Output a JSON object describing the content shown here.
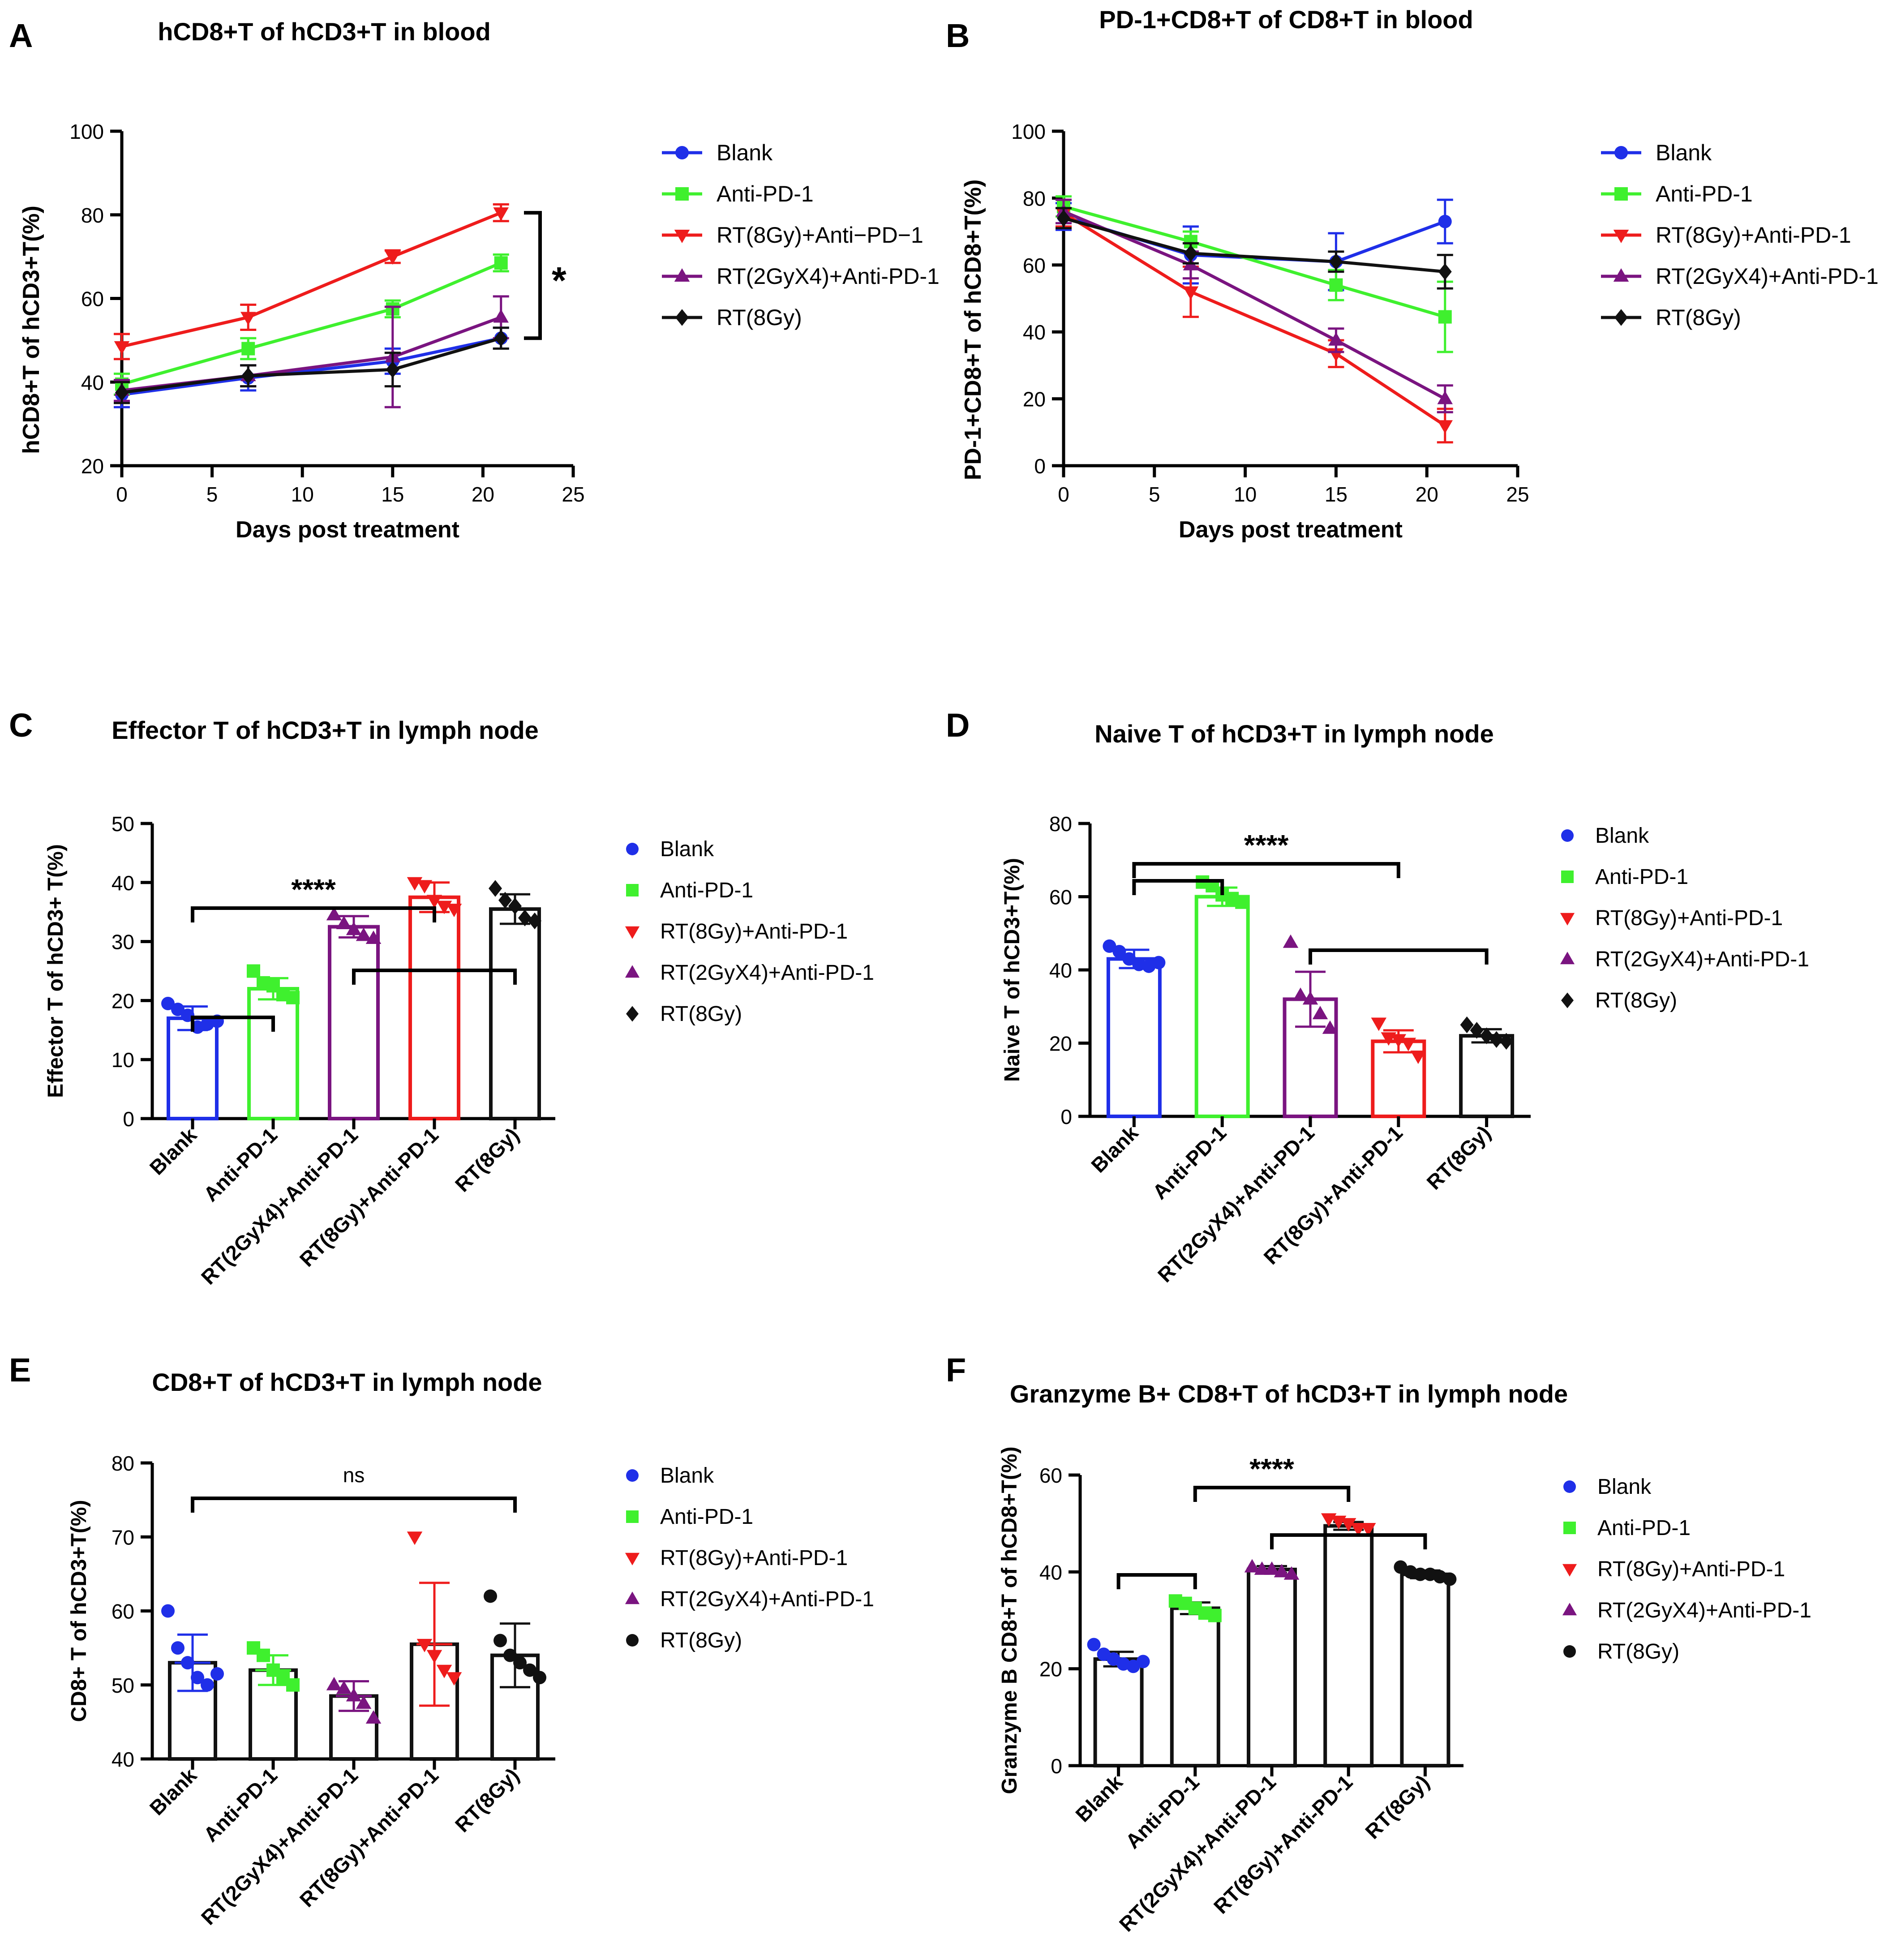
{
  "chart_data": [
    {
      "panel": "A",
      "type": "line",
      "title": "hCD8+T of  hCD3+T in blood",
      "xlabel": "Days post treatment",
      "ylabel": "hCD8+T of hCD3+T(%)",
      "xlim": [
        0,
        25
      ],
      "ylim": [
        20,
        100
      ],
      "xticks": [
        0,
        5,
        10,
        15,
        20,
        25
      ],
      "yticks": [
        20,
        40,
        60,
        80,
        100
      ],
      "x": [
        0,
        7,
        15,
        21
      ],
      "series": [
        {
          "name": "Blank",
          "color": "#1f2fe8",
          "marker": "circle",
          "values": [
            37,
            41,
            45,
            50.5
          ],
          "err": [
            3,
            3,
            3,
            2.5
          ]
        },
        {
          "name": "Anti-PD-1",
          "color": "#3ff02e",
          "marker": "square",
          "values": [
            39.5,
            48,
            57.5,
            68.5
          ],
          "err": [
            2.5,
            2.5,
            2,
            2
          ]
        },
        {
          "name": "RT(8Gy)+Anti−PD−1",
          "color": "#ee1c1c",
          "marker": "triangle-down",
          "values": [
            48.5,
            55.5,
            70,
            80.5
          ],
          "err": [
            3,
            3,
            1.5,
            2
          ]
        },
        {
          "name": "RT(2GyX4)+Anti-PD-1",
          "color": "#7a1480",
          "marker": "triangle-up",
          "values": [
            38,
            41.5,
            46,
            55.5
          ],
          "err": [
            2.5,
            2.5,
            12,
            5
          ]
        },
        {
          "name": "RT(8Gy)",
          "color": "#111111",
          "marker": "diamond",
          "values": [
            37.5,
            41.5,
            43,
            50.5
          ],
          "err": [
            2.5,
            2.5,
            4,
            2.5
          ]
        }
      ],
      "significance": [
        {
          "label": "*"
        }
      ]
    },
    {
      "panel": "B",
      "type": "line",
      "title": "PD-1+CD8+T of CD8+T in blood",
      "xlabel": "Days post treatment",
      "ylabel": "PD-1+CD8+T of hCD8+T(%)",
      "xlim": [
        0,
        25
      ],
      "ylim": [
        0,
        100
      ],
      "xticks": [
        0,
        5,
        10,
        15,
        20,
        25
      ],
      "yticks": [
        0,
        20,
        40,
        60,
        80,
        100
      ],
      "x": [
        0,
        7,
        15,
        21
      ],
      "series": [
        {
          "name": "Blank",
          "color": "#1f2fe8",
          "marker": "circle",
          "values": [
            74.5,
            63,
            61,
            73
          ],
          "err": [
            4,
            8.5,
            8.5,
            6.5
          ]
        },
        {
          "name": "Anti-PD-1",
          "color": "#3ff02e",
          "marker": "square",
          "values": [
            77.5,
            67,
            54,
            44.5
          ],
          "err": [
            3,
            3,
            4.5,
            10.5
          ]
        },
        {
          "name": "RT(8Gy)+Anti-PD-1",
          "color": "#ee1c1c",
          "marker": "triangle-down",
          "values": [
            75.5,
            52,
            33.5,
            12
          ],
          "err": [
            4,
            7.5,
            4,
            5
          ]
        },
        {
          "name": "RT(2GyX4)+Anti-PD-1",
          "color": "#7a1480",
          "marker": "triangle-up",
          "values": [
            76,
            60,
            37.5,
            20
          ],
          "err": [
            3.5,
            4,
            3.5,
            4
          ]
        },
        {
          "name": "RT(8Gy)",
          "color": "#111111",
          "marker": "diamond",
          "values": [
            74,
            63.5,
            61,
            58
          ],
          "err": [
            3,
            3,
            3,
            5
          ]
        }
      ]
    },
    {
      "panel": "C",
      "type": "bar",
      "title": "Effector T of hCD3+T in lymph node",
      "xlabel": "",
      "ylabel": "Effector T of hCD3+ T(%)",
      "ylim": [
        0,
        50
      ],
      "yticks": [
        0,
        10,
        20,
        30,
        40,
        50
      ],
      "categories": [
        "Blank",
        "Anti-PD-1",
        "RT(2GyX4)+Anti-PD-1",
        "RT(8Gy)+Anti-PD-1",
        "RT(8Gy)"
      ],
      "values": [
        17,
        22,
        32.5,
        37.5,
        35.5
      ],
      "err": [
        2,
        1.8,
        1.8,
        2.5,
        2.5
      ],
      "points": [
        [
          19.5,
          18.5,
          17.5,
          15.5,
          16,
          16.5
        ],
        [
          25,
          23,
          22.5,
          21,
          20.5
        ],
        [
          34.5,
          33,
          32,
          31,
          30.5
        ],
        [
          40,
          39.5,
          37,
          36,
          35.5
        ],
        [
          39,
          37,
          36,
          34,
          33.5
        ]
      ],
      "bar_colors": [
        "#1f2fe8",
        "#3ff02e",
        "#7a1480",
        "#ee1c1c",
        "#111111"
      ],
      "markers": [
        "circle",
        "square",
        "triangle-up",
        "triangle-down",
        "diamond"
      ],
      "significance": [
        {
          "label": "****"
        }
      ],
      "legend": [
        {
          "name": "Blank",
          "color": "#1f2fe8",
          "marker": "circle"
        },
        {
          "name": "Anti-PD-1",
          "color": "#3ff02e",
          "marker": "square"
        },
        {
          "name": "RT(8Gy)+Anti-PD-1",
          "color": "#ee1c1c",
          "marker": "triangle-down"
        },
        {
          "name": "RT(2GyX4)+Anti-PD-1",
          "color": "#7a1480",
          "marker": "triangle-up"
        },
        {
          "name": "RT(8Gy)",
          "color": "#111111",
          "marker": "diamond"
        }
      ]
    },
    {
      "panel": "D",
      "type": "bar",
      "title": "Naive T of hCD3+T in lymph node",
      "xlabel": "",
      "ylabel": "Naive T of hCD3+T(%)",
      "ylim": [
        0,
        80
      ],
      "yticks": [
        0,
        20,
        40,
        60,
        80
      ],
      "categories": [
        "Blank",
        "Anti-PD-1",
        "RT(2GyX4)+Anti-PD-1",
        "RT(8Gy)+Anti-PD-1",
        "RT(8Gy)"
      ],
      "values": [
        43,
        60,
        32,
        20.5,
        22
      ],
      "err": [
        2.5,
        2.5,
        7.5,
        3,
        1.8
      ],
      "points": [
        [
          46.5,
          45,
          43,
          41.5,
          41,
          42
        ],
        [
          64,
          63,
          60.5,
          59.5,
          58.5
        ],
        [
          47.5,
          33,
          32,
          28,
          24
        ],
        [
          25.5,
          21.5,
          21,
          20,
          16.5
        ],
        [
          25,
          23.5,
          22,
          21,
          20.5
        ]
      ],
      "bar_colors": [
        "#1f2fe8",
        "#3ff02e",
        "#7a1480",
        "#ee1c1c",
        "#111111"
      ],
      "markers": [
        "circle",
        "square",
        "triangle-up",
        "triangle-down",
        "diamond"
      ],
      "significance": [
        {
          "label": "****"
        }
      ],
      "legend": [
        {
          "name": "Blank",
          "color": "#1f2fe8",
          "marker": "circle"
        },
        {
          "name": "Anti-PD-1",
          "color": "#3ff02e",
          "marker": "square"
        },
        {
          "name": "RT(8Gy)+Anti-PD-1",
          "color": "#ee1c1c",
          "marker": "triangle-down"
        },
        {
          "name": "RT(2GyX4)+Anti-PD-1",
          "color": "#7a1480",
          "marker": "triangle-up"
        },
        {
          "name": "RT(8Gy)",
          "color": "#111111",
          "marker": "diamond"
        }
      ]
    },
    {
      "panel": "E",
      "type": "bar",
      "title": "CD8+T of hCD3+T in lymph node",
      "xlabel": "",
      "ylabel": "CD8+ T of hCD3+T(%)",
      "ylim": [
        40,
        80
      ],
      "yticks": [
        40,
        50,
        60,
        70,
        80
      ],
      "categories": [
        "Blank",
        "Anti-PD-1",
        "RT(2GyX4)+Anti-PD-1",
        "RT(8Gy)+Anti-PD-1",
        "RT(8Gy)"
      ],
      "values": [
        53,
        52,
        48.5,
        55.5,
        54
      ],
      "err": [
        3.8,
        2,
        2,
        8.3,
        4.3
      ],
      "points": [
        [
          60,
          55,
          53,
          51,
          50,
          51.5
        ],
        [
          55,
          54,
          52,
          51,
          50
        ],
        [
          50,
          49.5,
          48.5,
          47.5,
          45.5
        ],
        [
          70,
          55.5,
          54,
          52,
          51
        ],
        [
          62,
          56,
          54,
          53,
          52,
          51
        ]
      ],
      "bar_colors": [
        "#111111",
        "#111111",
        "#111111",
        "#111111",
        "#111111"
      ],
      "point_colors": [
        "#1f2fe8",
        "#3ff02e",
        "#7a1480",
        "#ee1c1c",
        "#111111"
      ],
      "err_colors": [
        "#1f2fe8",
        "#3ff02e",
        "#7a1480",
        "#ee1c1c",
        "#111111"
      ],
      "markers": [
        "circle",
        "square",
        "triangle-up",
        "triangle-down",
        "circle"
      ],
      "significance": [
        {
          "label": "ns"
        }
      ],
      "legend": [
        {
          "name": "Blank",
          "color": "#1f2fe8",
          "marker": "circle"
        },
        {
          "name": "Anti-PD-1",
          "color": "#3ff02e",
          "marker": "square"
        },
        {
          "name": "RT(8Gy)+Anti-PD-1",
          "color": "#ee1c1c",
          "marker": "triangle-down"
        },
        {
          "name": "RT(2GyX4)+Anti-PD-1",
          "color": "#7a1480",
          "marker": "triangle-up"
        },
        {
          "name": "RT(8Gy)",
          "color": "#111111",
          "marker": "circle"
        }
      ]
    },
    {
      "panel": "F",
      "type": "bar",
      "title": "Granzyme B+ CD8+T of hCD3+T in lymph node",
      "xlabel": "",
      "ylabel": "Granzyme B CD8+T of hCD8+T(%)",
      "ylim": [
        0,
        60
      ],
      "yticks": [
        0,
        20,
        40,
        60
      ],
      "categories": [
        "Blank",
        "Anti-PD-1",
        "RT(2GyX4)+Anti-PD-1",
        "RT(8Gy)+Anti-PD-1",
        "RT(8Gy)"
      ],
      "values": [
        22,
        32.5,
        40.5,
        49.5,
        39.5
      ],
      "err": [
        1.5,
        1.2,
        0.7,
        0.8,
        0.8
      ],
      "points": [
        [
          25,
          23,
          22,
          21,
          20.5,
          21.5
        ],
        [
          34,
          33.5,
          32.5,
          31.5,
          31
        ],
        [
          41,
          40.5,
          40.5,
          40,
          39.5
        ],
        [
          51,
          50.5,
          50,
          49,
          49
        ],
        [
          41,
          40,
          39.5,
          39.5,
          39,
          38.5
        ]
      ],
      "bar_colors": [
        "#111111",
        "#111111",
        "#111111",
        "#111111",
        "#111111"
      ],
      "point_colors": [
        "#1f2fe8",
        "#3ff02e",
        "#7a1480",
        "#ee1c1c",
        "#111111"
      ],
      "err_colors": [
        "#111111",
        "#111111",
        "#111111",
        "#111111",
        "#111111"
      ],
      "markers": [
        "circle",
        "square",
        "triangle-up",
        "triangle-down",
        "circle"
      ],
      "significance": [
        {
          "label": "****"
        }
      ],
      "legend": [
        {
          "name": "Blank",
          "color": "#1f2fe8",
          "marker": "circle"
        },
        {
          "name": "Anti-PD-1",
          "color": "#3ff02e",
          "marker": "square"
        },
        {
          "name": "RT(8Gy)+Anti-PD-1",
          "color": "#ee1c1c",
          "marker": "triangle-down"
        },
        {
          "name": "RT(2GyX4)+Anti-PD-1",
          "color": "#7a1480",
          "marker": "triangle-up"
        },
        {
          "name": "RT(8Gy)",
          "color": "#111111",
          "marker": "circle"
        }
      ]
    }
  ]
}
